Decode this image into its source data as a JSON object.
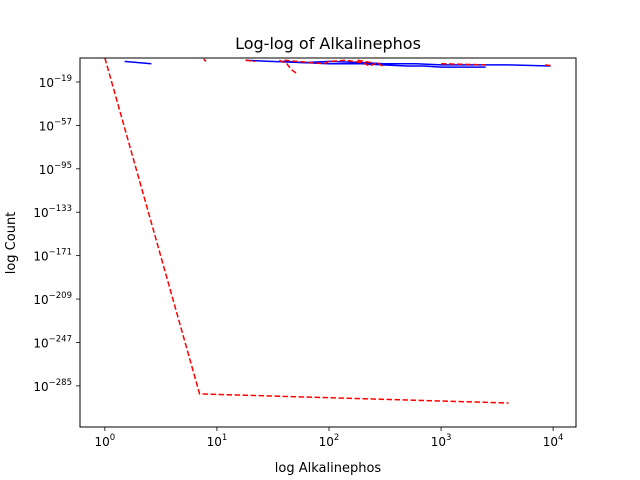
{
  "chart_data": {
    "type": "line",
    "title": "Log-log of Alkalinephos",
    "xlabel": "log Alkalinephos",
    "ylabel": "log Count",
    "xscale": "log",
    "yscale": "log",
    "xlim": [
      0.6,
      16000
    ],
    "ylim_exponent": [
      -321,
      2
    ],
    "grid": false,
    "legend": "none",
    "x_ticks": [
      {
        "base": "10",
        "exp": "0",
        "value": 1
      },
      {
        "base": "10",
        "exp": "1",
        "value": 10
      },
      {
        "base": "10",
        "exp": "2",
        "value": 100
      },
      {
        "base": "10",
        "exp": "3",
        "value": 1000
      },
      {
        "base": "10",
        "exp": "4",
        "value": 10000
      }
    ],
    "y_ticks": [
      {
        "base": "10",
        "exp": "−19",
        "exponent": -19
      },
      {
        "base": "10",
        "exp": "−57",
        "exponent": -57
      },
      {
        "base": "10",
        "exp": "−95",
        "exponent": -95
      },
      {
        "base": "10",
        "exp": "−133",
        "exponent": -133
      },
      {
        "base": "10",
        "exp": "−171",
        "exponent": -171
      },
      {
        "base": "10",
        "exp": "−209",
        "exponent": -209
      },
      {
        "base": "10",
        "exp": "−247",
        "exponent": -247
      },
      {
        "base": "10",
        "exp": "−285",
        "exponent": -285
      }
    ],
    "series": [
      {
        "color": "#0000ff",
        "style": "solid",
        "segments": [
          [
            [
              1.5,
              -1
            ],
            [
              2.6,
              -3
            ]
          ],
          [
            [
              18,
              0
            ],
            [
              30,
              -1
            ],
            [
              60,
              -2
            ],
            [
              100,
              -1
            ],
            [
              200,
              -2
            ],
            [
              300,
              -3
            ],
            [
              600,
              -3
            ],
            [
              1000,
              -4
            ],
            [
              2000,
              -4
            ],
            [
              4000,
              -4
            ],
            [
              9500,
              -5
            ]
          ],
          [
            [
              38,
              -1
            ],
            [
              60,
              -2
            ],
            [
              100,
              -3
            ],
            [
              200,
              -3
            ],
            [
              300,
              -4
            ],
            [
              500,
              -5
            ],
            [
              700,
              -5
            ],
            [
              1000,
              -6
            ],
            [
              2500,
              -6
            ]
          ]
        ]
      },
      {
        "color": "#ff0000",
        "style": "dashed",
        "segments": [
          [
            [
              1,
              2
            ],
            [
              7,
              -292
            ],
            [
              4000,
              -300
            ]
          ],
          [
            [
              7.6,
              1
            ],
            [
              8,
              -1
            ]
          ],
          [
            [
              18,
              0
            ],
            [
              22,
              -1
            ]
          ],
          [
            [
              36,
              0
            ],
            [
              42,
              -3
            ],
            [
              46,
              -8
            ],
            [
              52,
              -12
            ]
          ],
          [
            [
              40,
              0
            ],
            [
              90,
              -3
            ],
            [
              100,
              -1
            ],
            [
              140,
              0
            ],
            [
              200,
              -2
            ],
            [
              230,
              -5
            ],
            [
              270,
              -2
            ],
            [
              310,
              -6
            ]
          ],
          [
            [
              180,
              0
            ],
            [
              240,
              -2
            ]
          ],
          [
            [
              1000,
              -3
            ],
            [
              2500,
              -4
            ]
          ],
          [
            [
              8500,
              -4
            ],
            [
              10000,
              -5
            ]
          ]
        ]
      }
    ]
  }
}
